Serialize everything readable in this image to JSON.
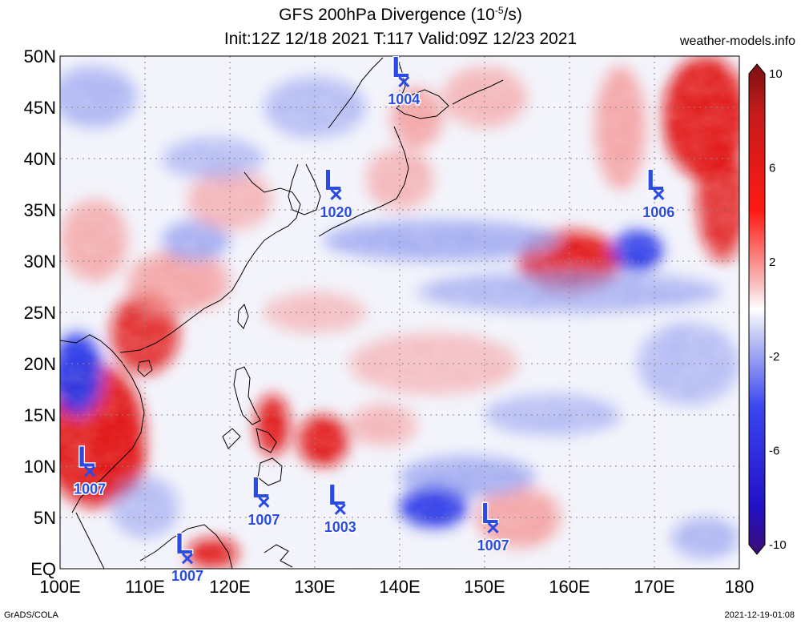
{
  "header": {
    "title_main": "GFS 200hPa Divergence (10",
    "title_exp": "-5",
    "title_unit": "/s)",
    "subtitle": "Init:12Z 12/18 2021 T:117 Valid:09Z 12/23 2021",
    "site": "weather-models.info"
  },
  "footer": {
    "left": "GrADS/COLA",
    "right": "2021-12-19-01:08"
  },
  "map": {
    "lon_range": [
      100,
      180
    ],
    "lat_range": [
      0,
      50
    ],
    "lat_labels": [
      "50N",
      "45N",
      "40N",
      "35N",
      "30N",
      "25N",
      "20N",
      "15N",
      "10N",
      "5N",
      "EQ"
    ],
    "lon_labels": [
      "100E",
      "110E",
      "120E",
      "130E",
      "140E",
      "150E",
      "160E",
      "170E",
      "180"
    ],
    "colors": {
      "strong_positive": "#e0100e",
      "positive": "#f38c8c",
      "negative": "#8c98ee",
      "strong_negative": "#1c2de6",
      "grid": "#888888",
      "low_marker": "#2b4be5"
    },
    "lows": [
      {
        "lon": 140.5,
        "lat": 47.5,
        "pressure": "1004"
      },
      {
        "lon": 132.5,
        "lat": 36.5,
        "pressure": "1020"
      },
      {
        "lon": 170.5,
        "lat": 36.5,
        "pressure": "1006"
      },
      {
        "lon": 103.5,
        "lat": 9.5,
        "pressure": "1007"
      },
      {
        "lon": 124.0,
        "lat": 6.5,
        "pressure": "1007"
      },
      {
        "lon": 133.0,
        "lat": 5.8,
        "pressure": "1003"
      },
      {
        "lon": 151.0,
        "lat": 4.0,
        "pressure": "1007"
      },
      {
        "lon": 115.0,
        "lat": 1.0,
        "pressure": "1007"
      }
    ],
    "divergence_blobs": [
      {
        "lon": 104,
        "lat": 13,
        "rx": 6,
        "ry": 7,
        "value": 7
      },
      {
        "lon": 107,
        "lat": 11,
        "rx": 3,
        "ry": 4,
        "value": 9
      },
      {
        "lon": 102,
        "lat": 19,
        "rx": 3,
        "ry": 4,
        "value": -8
      },
      {
        "lon": 110,
        "lat": 23,
        "rx": 4,
        "ry": 4,
        "value": 6
      },
      {
        "lon": 114,
        "lat": 28,
        "rx": 6,
        "ry": 3,
        "value": 5
      },
      {
        "lon": 116,
        "lat": 32,
        "rx": 4,
        "ry": 2,
        "value": -5
      },
      {
        "lon": 104,
        "lat": 32,
        "rx": 4,
        "ry": 4,
        "value": 4
      },
      {
        "lon": 120,
        "lat": 36,
        "rx": 5,
        "ry": 3,
        "value": 3
      },
      {
        "lon": 125,
        "lat": 14,
        "rx": 2,
        "ry": 3,
        "value": 8
      },
      {
        "lon": 131,
        "lat": 12.5,
        "rx": 3,
        "ry": 2.5,
        "value": 9
      },
      {
        "lon": 142,
        "lat": 44,
        "rx": 3,
        "ry": 3,
        "value": 5
      },
      {
        "lon": 160,
        "lat": 30,
        "rx": 6,
        "ry": 3,
        "value": 8
      },
      {
        "lon": 176,
        "lat": 44,
        "rx": 5,
        "ry": 6,
        "value": 8
      },
      {
        "lon": 166,
        "lat": 43,
        "rx": 3,
        "ry": 6,
        "value": 5
      },
      {
        "lon": 178,
        "lat": 36,
        "rx": 3,
        "ry": 6,
        "value": 6
      },
      {
        "lon": 154,
        "lat": 5,
        "rx": 5,
        "ry": 3,
        "value": 5
      },
      {
        "lon": 118,
        "lat": 1.5,
        "rx": 3,
        "ry": 1.5,
        "value": 8
      },
      {
        "lon": 144,
        "lat": 20,
        "rx": 10,
        "ry": 3,
        "value": 2
      },
      {
        "lon": 130,
        "lat": 25,
        "rx": 6,
        "ry": 2,
        "value": 2
      },
      {
        "lon": 145,
        "lat": 32,
        "rx": 14,
        "ry": 2,
        "value": -5
      },
      {
        "lon": 160,
        "lat": 27,
        "rx": 18,
        "ry": 2,
        "value": -4
      },
      {
        "lon": 168,
        "lat": 31,
        "rx": 3,
        "ry": 2,
        "value": -7
      },
      {
        "lon": 148,
        "lat": 9,
        "rx": 8,
        "ry": 2,
        "value": -5
      },
      {
        "lon": 144,
        "lat": 6,
        "rx": 4,
        "ry": 2,
        "value": -8
      },
      {
        "lon": 104,
        "lat": 46,
        "rx": 5,
        "ry": 3,
        "value": -4
      },
      {
        "lon": 118,
        "lat": 40,
        "rx": 6,
        "ry": 2,
        "value": -3
      },
      {
        "lon": 140,
        "lat": 38,
        "rx": 4,
        "ry": 3,
        "value": 3
      },
      {
        "lon": 174,
        "lat": 20,
        "rx": 6,
        "ry": 4,
        "value": -3
      },
      {
        "lon": 176,
        "lat": 3,
        "rx": 4,
        "ry": 2,
        "value": -4
      },
      {
        "lon": 110,
        "lat": 6,
        "rx": 4,
        "ry": 3,
        "value": -3
      },
      {
        "lon": 130,
        "lat": 45,
        "rx": 6,
        "ry": 3,
        "value": -3
      },
      {
        "lon": 150,
        "lat": 46,
        "rx": 5,
        "ry": 3,
        "value": 3
      },
      {
        "lon": 158,
        "lat": 15,
        "rx": 8,
        "ry": 2,
        "value": -3
      },
      {
        "lon": 138,
        "lat": 14,
        "rx": 4,
        "ry": 2,
        "value": 3
      }
    ]
  },
  "colorbar": {
    "range": [
      -10,
      10
    ],
    "tick_labels": [
      {
        "value": 10,
        "label": "10"
      },
      {
        "value": 6,
        "label": "6"
      },
      {
        "value": 2,
        "label": "2"
      },
      {
        "value": -2,
        "label": "-2"
      },
      {
        "value": -6,
        "label": "-6"
      },
      {
        "value": -10,
        "label": "-10"
      }
    ]
  }
}
